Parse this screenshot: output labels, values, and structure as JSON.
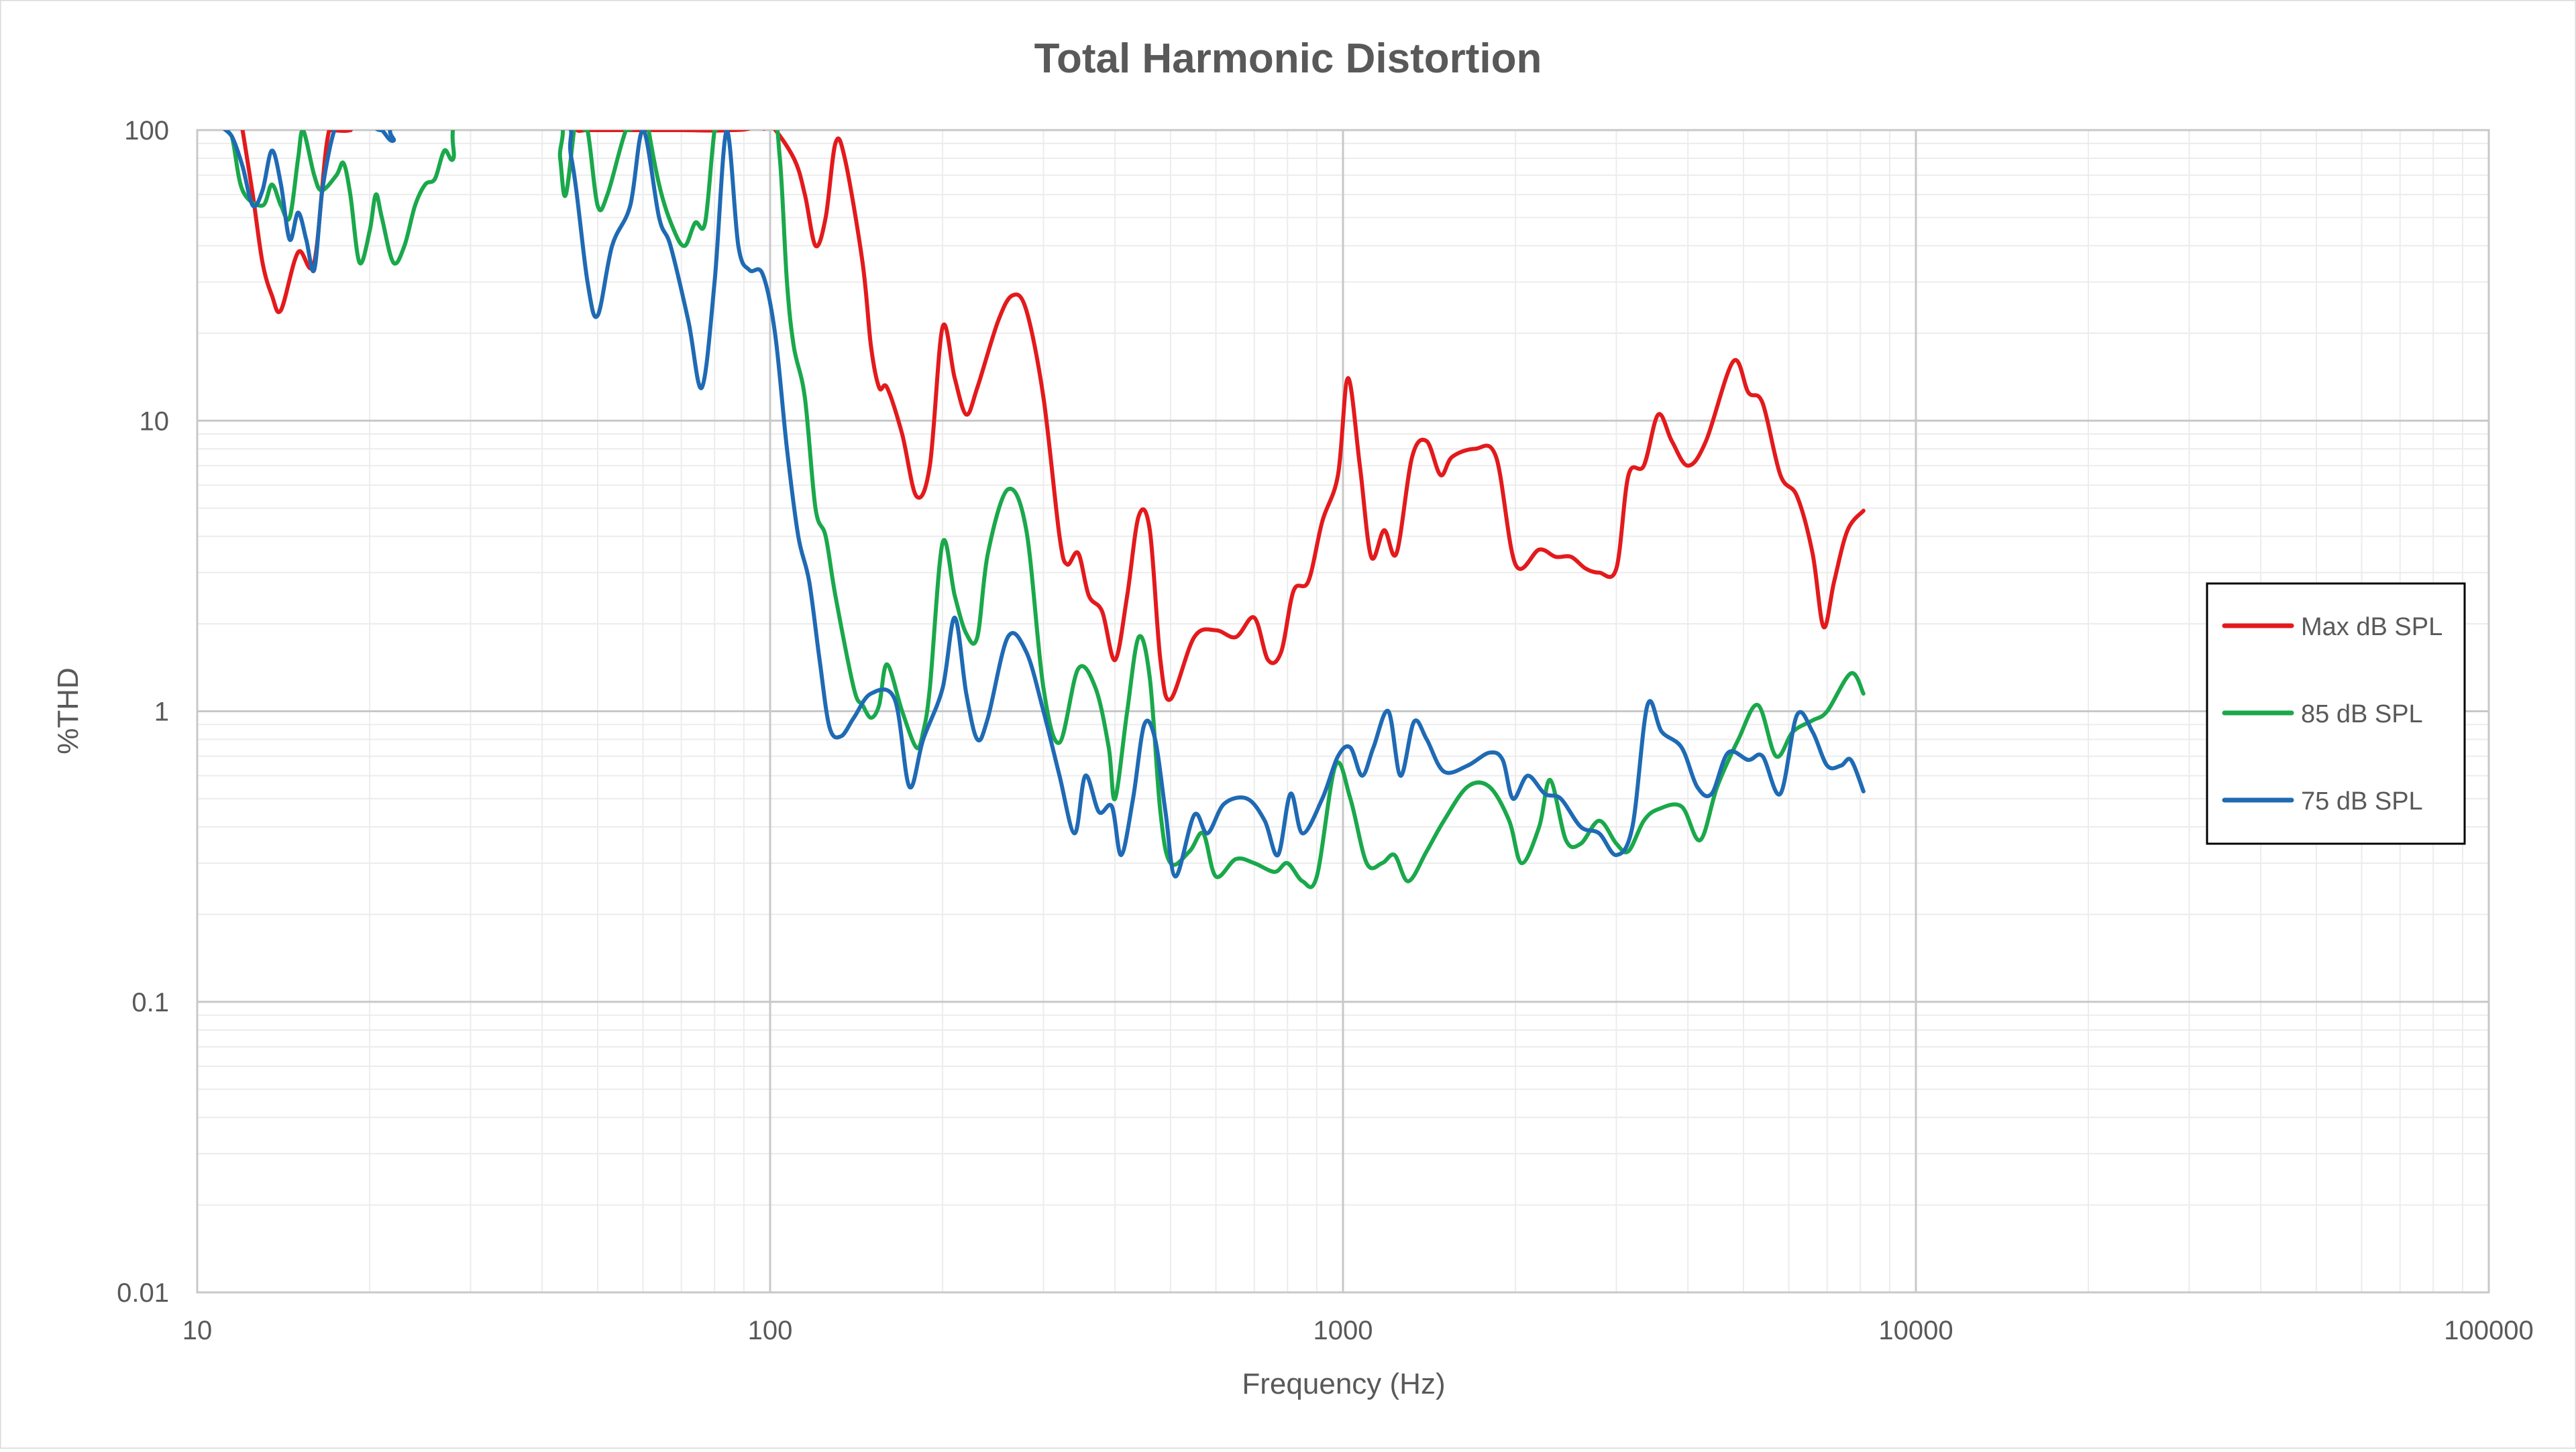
{
  "chart_data": {
    "type": "line",
    "title": "Total Harmonic Distortion",
    "xlabel": "Frequency (Hz)",
    "ylabel": "%THD",
    "x_scale": "log",
    "y_scale": "log",
    "xlim": [
      10,
      100000
    ],
    "ylim": [
      0.01,
      100
    ],
    "x_ticks": [
      "10",
      "100",
      "1000",
      "10000",
      "100000"
    ],
    "y_ticks": [
      "0.01",
      "0.1",
      "1",
      "10",
      "100"
    ],
    "grid": true,
    "legend_position": "right",
    "series": [
      {
        "name": "Max dB SPL",
        "color": "#e31a1c",
        "points": [
          [
            12.0,
            100
          ],
          [
            12.5,
            60
          ],
          [
            13.0,
            35
          ],
          [
            13.5,
            27
          ],
          [
            14.0,
            24
          ],
          [
            15.0,
            38
          ],
          [
            16.0,
            35
          ],
          [
            17.0,
            100
          ],
          [
            18.5,
            100
          ],
          [
            19,
            108
          ],
          [
            45,
            108
          ],
          [
            46,
            100
          ],
          [
            48,
            100
          ],
          [
            55,
            100
          ],
          [
            60,
            100
          ],
          [
            70,
            100
          ],
          [
            85,
            100
          ],
          [
            95,
            105
          ],
          [
            100,
            105
          ],
          [
            110,
            80
          ],
          [
            115,
            60
          ],
          [
            120,
            40
          ],
          [
            125,
            50
          ],
          [
            130,
            90
          ],
          [
            135,
            80
          ],
          [
            145,
            35
          ],
          [
            150,
            18
          ],
          [
            155,
            13
          ],
          [
            160,
            13
          ],
          [
            170,
            9
          ],
          [
            180,
            5.5
          ],
          [
            190,
            7
          ],
          [
            200,
            21
          ],
          [
            210,
            14
          ],
          [
            220,
            10.5
          ],
          [
            230,
            13
          ],
          [
            250,
            22
          ],
          [
            265,
            27
          ],
          [
            280,
            24
          ],
          [
            300,
            12
          ],
          [
            320,
            4
          ],
          [
            330,
            3.2
          ],
          [
            345,
            3.5
          ],
          [
            360,
            2.5
          ],
          [
            380,
            2.2
          ],
          [
            400,
            1.5
          ],
          [
            420,
            2.5
          ],
          [
            440,
            4.7
          ],
          [
            460,
            4.2
          ],
          [
            480,
            1.5
          ],
          [
            500,
            1.1
          ],
          [
            550,
            1.8
          ],
          [
            600,
            1.9
          ],
          [
            650,
            1.8
          ],
          [
            700,
            2.1
          ],
          [
            740,
            1.5
          ],
          [
            780,
            1.6
          ],
          [
            820,
            2.6
          ],
          [
            870,
            2.8
          ],
          [
            920,
            4.5
          ],
          [
            980,
            6.5
          ],
          [
            1020,
            14
          ],
          [
            1070,
            7
          ],
          [
            1120,
            3.4
          ],
          [
            1180,
            4.2
          ],
          [
            1240,
            3.5
          ],
          [
            1320,
            7.5
          ],
          [
            1400,
            8.5
          ],
          [
            1480,
            6.5
          ],
          [
            1550,
            7.5
          ],
          [
            1700,
            8.0
          ],
          [
            1850,
            7.5
          ],
          [
            2000,
            3.2
          ],
          [
            2200,
            3.6
          ],
          [
            2350,
            3.4
          ],
          [
            2500,
            3.4
          ],
          [
            2650,
            3.1
          ],
          [
            2800,
            3.0
          ],
          [
            3000,
            3.1
          ],
          [
            3150,
            6.5
          ],
          [
            3350,
            7
          ],
          [
            3550,
            10.5
          ],
          [
            3750,
            8.5
          ],
          [
            4000,
            7.0
          ],
          [
            4300,
            8.5
          ],
          [
            4800,
            16
          ],
          [
            5100,
            12.5
          ],
          [
            5400,
            11.5
          ],
          [
            5800,
            6.5
          ],
          [
            6200,
            5.5
          ],
          [
            6600,
            3.5
          ],
          [
            6900,
            1.95
          ],
          [
            7200,
            2.8
          ],
          [
            7600,
            4.2
          ],
          [
            8100,
            4.9
          ]
        ]
      },
      {
        "name": "85 dB SPL",
        "color": "#1aa84b",
        "points": [
          [
            11.0,
            120
          ],
          [
            11.5,
            95
          ],
          [
            12.0,
            62
          ],
          [
            13.0,
            55
          ],
          [
            13.5,
            65
          ],
          [
            14.0,
            55
          ],
          [
            14.5,
            50
          ],
          [
            15.0,
            80
          ],
          [
            15.3,
            100
          ],
          [
            16.0,
            70
          ],
          [
            16.5,
            62
          ],
          [
            17.5,
            70
          ],
          [
            18.0,
            77
          ],
          [
            18.5,
            60
          ],
          [
            19.2,
            35
          ],
          [
            20.0,
            45
          ],
          [
            20.5,
            60
          ],
          [
            21.0,
            50
          ],
          [
            22.0,
            35
          ],
          [
            23.0,
            40
          ],
          [
            24.0,
            55
          ],
          [
            25.0,
            65
          ],
          [
            26.0,
            68
          ],
          [
            27.0,
            85
          ],
          [
            28.0,
            80
          ],
          [
            29.0,
            120
          ],
          [
            42,
            120
          ],
          [
            43,
            80
          ],
          [
            44,
            60
          ],
          [
            46,
            120
          ],
          [
            48,
            100
          ],
          [
            50,
            55
          ],
          [
            52,
            60
          ],
          [
            56,
            100
          ],
          [
            60,
            130
          ],
          [
            64,
            65
          ],
          [
            68,
            45
          ],
          [
            71,
            40
          ],
          [
            74,
            48
          ],
          [
            77,
            48
          ],
          [
            80,
            100
          ],
          [
            83,
            130
          ],
          [
            100,
            130
          ],
          [
            104,
            80
          ],
          [
            107,
            30
          ],
          [
            110,
            18
          ],
          [
            115,
            12
          ],
          [
            120,
            5
          ],
          [
            125,
            4
          ],
          [
            130,
            2.5
          ],
          [
            140,
            1.2
          ],
          [
            145,
            1.05
          ],
          [
            150,
            0.95
          ],
          [
            155,
            1.05
          ],
          [
            160,
            1.45
          ],
          [
            170,
            1.0
          ],
          [
            180,
            0.75
          ],
          [
            185,
            0.85
          ],
          [
            190,
            1.2
          ],
          [
            200,
            3.8
          ],
          [
            210,
            2.5
          ],
          [
            220,
            1.85
          ],
          [
            230,
            1.8
          ],
          [
            240,
            3.5
          ],
          [
            260,
            5.8
          ],
          [
            280,
            4.2
          ],
          [
            300,
            1.2
          ],
          [
            320,
            0.78
          ],
          [
            345,
            1.4
          ],
          [
            370,
            1.2
          ],
          [
            390,
            0.75
          ],
          [
            400,
            0.5
          ],
          [
            420,
            1.0
          ],
          [
            440,
            1.8
          ],
          [
            460,
            1.3
          ],
          [
            480,
            0.45
          ],
          [
            500,
            0.3
          ],
          [
            540,
            0.33
          ],
          [
            570,
            0.38
          ],
          [
            600,
            0.27
          ],
          [
            650,
            0.31
          ],
          [
            700,
            0.3
          ],
          [
            760,
            0.28
          ],
          [
            800,
            0.3
          ],
          [
            850,
            0.26
          ],
          [
            900,
            0.27
          ],
          [
            970,
            0.65
          ],
          [
            1030,
            0.5
          ],
          [
            1100,
            0.3
          ],
          [
            1170,
            0.3
          ],
          [
            1230,
            0.32
          ],
          [
            1300,
            0.26
          ],
          [
            1400,
            0.33
          ],
          [
            1500,
            0.42
          ],
          [
            1650,
            0.55
          ],
          [
            1800,
            0.55
          ],
          [
            1950,
            0.42
          ],
          [
            2050,
            0.3
          ],
          [
            2200,
            0.4
          ],
          [
            2300,
            0.58
          ],
          [
            2450,
            0.36
          ],
          [
            2600,
            0.35
          ],
          [
            2800,
            0.42
          ],
          [
            3000,
            0.35
          ],
          [
            3150,
            0.33
          ],
          [
            3350,
            0.42
          ],
          [
            3550,
            0.46
          ],
          [
            3900,
            0.47
          ],
          [
            4200,
            0.36
          ],
          [
            4500,
            0.55
          ],
          [
            4900,
            0.8
          ],
          [
            5300,
            1.05
          ],
          [
            5700,
            0.7
          ],
          [
            6100,
            0.85
          ],
          [
            6600,
            0.93
          ],
          [
            7000,
            1.0
          ],
          [
            7700,
            1.35
          ],
          [
            8100,
            1.15
          ]
        ]
      },
      {
        "name": "75 dB SPL",
        "color": "#1f6ab4",
        "points": [
          [
            11.0,
            105
          ],
          [
            11.5,
            95
          ],
          [
            12.0,
            75
          ],
          [
            12.5,
            55
          ],
          [
            13.0,
            62
          ],
          [
            13.5,
            85
          ],
          [
            14.0,
            65
          ],
          [
            14.5,
            42
          ],
          [
            15.0,
            52
          ],
          [
            15.5,
            42
          ],
          [
            16.0,
            33
          ],
          [
            16.5,
            60
          ],
          [
            17.0,
            85
          ],
          [
            17.5,
            105
          ],
          [
            18.0,
            108
          ],
          [
            20.0,
            108
          ],
          [
            21.0,
            100
          ],
          [
            22.0,
            92
          ],
          [
            23.0,
            110
          ],
          [
            42,
            110
          ],
          [
            45,
            80
          ],
          [
            48,
            30
          ],
          [
            50,
            23
          ],
          [
            53,
            40
          ],
          [
            57,
            55
          ],
          [
            60,
            100
          ],
          [
            64,
            50
          ],
          [
            67,
            40
          ],
          [
            72,
            22
          ],
          [
            76,
            13
          ],
          [
            80,
            30
          ],
          [
            84,
            100
          ],
          [
            88,
            40
          ],
          [
            92,
            33
          ],
          [
            97,
            32
          ],
          [
            102,
            20
          ],
          [
            107,
            8
          ],
          [
            112,
            4
          ],
          [
            117,
            2.8
          ],
          [
            122,
            1.5
          ],
          [
            127,
            0.88
          ],
          [
            133,
            0.82
          ],
          [
            140,
            0.95
          ],
          [
            150,
            1.15
          ],
          [
            165,
            1.1
          ],
          [
            175,
            0.55
          ],
          [
            185,
            0.8
          ],
          [
            200,
            1.2
          ],
          [
            210,
            2.1
          ],
          [
            220,
            1.15
          ],
          [
            230,
            0.8
          ],
          [
            240,
            0.95
          ],
          [
            260,
            1.8
          ],
          [
            280,
            1.6
          ],
          [
            300,
            1.0
          ],
          [
            320,
            0.6
          ],
          [
            340,
            0.38
          ],
          [
            355,
            0.6
          ],
          [
            375,
            0.45
          ],
          [
            395,
            0.47
          ],
          [
            410,
            0.32
          ],
          [
            430,
            0.5
          ],
          [
            450,
            0.9
          ],
          [
            470,
            0.8
          ],
          [
            490,
            0.45
          ],
          [
            510,
            0.27
          ],
          [
            550,
            0.44
          ],
          [
            580,
            0.38
          ],
          [
            620,
            0.48
          ],
          [
            680,
            0.5
          ],
          [
            730,
            0.42
          ],
          [
            770,
            0.32
          ],
          [
            810,
            0.52
          ],
          [
            850,
            0.38
          ],
          [
            920,
            0.5
          ],
          [
            980,
            0.7
          ],
          [
            1030,
            0.75
          ],
          [
            1080,
            0.6
          ],
          [
            1130,
            0.75
          ],
          [
            1200,
            1.0
          ],
          [
            1260,
            0.6
          ],
          [
            1330,
            0.92
          ],
          [
            1400,
            0.8
          ],
          [
            1500,
            0.62
          ],
          [
            1650,
            0.65
          ],
          [
            1800,
            0.72
          ],
          [
            1900,
            0.68
          ],
          [
            1980,
            0.5
          ],
          [
            2100,
            0.6
          ],
          [
            2250,
            0.52
          ],
          [
            2400,
            0.5
          ],
          [
            2600,
            0.4
          ],
          [
            2800,
            0.38
          ],
          [
            3000,
            0.32
          ],
          [
            3200,
            0.4
          ],
          [
            3400,
            1.05
          ],
          [
            3600,
            0.85
          ],
          [
            3900,
            0.75
          ],
          [
            4150,
            0.55
          ],
          [
            4400,
            0.52
          ],
          [
            4700,
            0.72
          ],
          [
            5100,
            0.68
          ],
          [
            5400,
            0.7
          ],
          [
            5800,
            0.52
          ],
          [
            6200,
            0.97
          ],
          [
            6600,
            0.85
          ],
          [
            7000,
            0.65
          ],
          [
            7400,
            0.65
          ],
          [
            7700,
            0.68
          ],
          [
            8100,
            0.53
          ]
        ]
      }
    ]
  }
}
